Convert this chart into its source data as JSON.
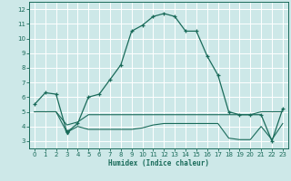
{
  "xlabel": "Humidex (Indice chaleur)",
  "x": [
    0,
    1,
    2,
    3,
    4,
    5,
    6,
    7,
    8,
    9,
    10,
    11,
    12,
    13,
    14,
    15,
    16,
    17,
    18,
    19,
    20,
    21,
    22,
    23
  ],
  "line1": [
    5.5,
    6.3,
    6.2,
    3.6,
    4.2,
    6.0,
    6.2,
    7.2,
    8.2,
    10.5,
    10.9,
    11.5,
    11.7,
    11.5,
    10.5,
    10.5,
    8.8,
    7.5,
    5.0,
    4.8,
    4.8,
    4.8,
    3.0,
    5.2
  ],
  "line2": [
    5.0,
    5.0,
    5.0,
    4.1,
    4.3,
    4.8,
    4.8,
    4.8,
    4.8,
    4.8,
    4.8,
    4.8,
    4.8,
    4.8,
    4.8,
    4.8,
    4.8,
    4.8,
    4.8,
    4.8,
    4.8,
    5.0,
    5.0,
    5.0
  ],
  "line3": [
    5.0,
    5.0,
    5.0,
    3.6,
    4.0,
    3.8,
    3.8,
    3.8,
    3.8,
    3.8,
    3.9,
    4.1,
    4.2,
    4.2,
    4.2,
    4.2,
    4.2,
    4.2,
    3.2,
    3.1,
    3.1,
    4.0,
    3.1,
    4.2
  ],
  "line_color": "#1a6b5a",
  "bg_color": "#cde8e8",
  "xlim": [
    -0.5,
    23.5
  ],
  "ylim": [
    2.5,
    12.5
  ],
  "yticks": [
    3,
    4,
    5,
    6,
    7,
    8,
    9,
    10,
    11,
    12
  ],
  "xticks": [
    0,
    1,
    2,
    3,
    4,
    5,
    6,
    7,
    8,
    9,
    10,
    11,
    12,
    13,
    14,
    15,
    16,
    17,
    18,
    19,
    20,
    21,
    22,
    23
  ]
}
